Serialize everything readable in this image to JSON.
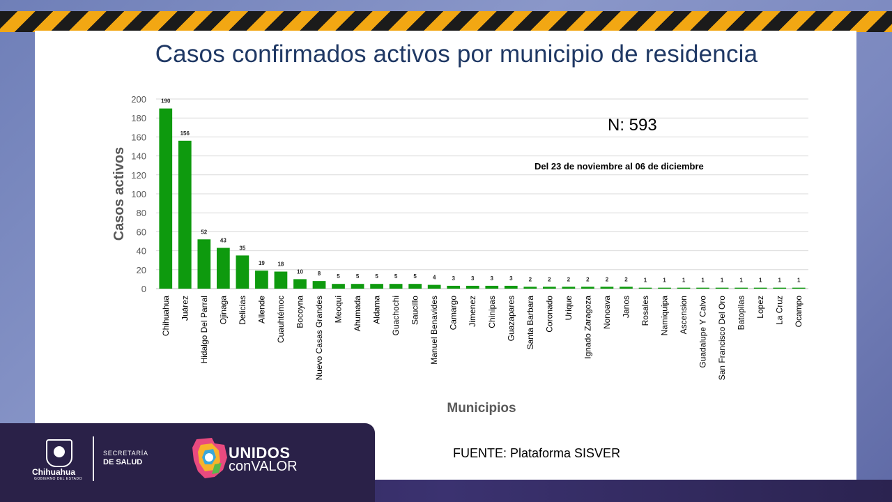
{
  "title": "Casos confirmados activos por municipio de residencia",
  "n_label": "N: 593",
  "period": "Del 23 de noviembre al 06 de diciembre",
  "source": "FUENTE: Plataforma SISVER",
  "colors": {
    "bar": "#0e9a0e",
    "title": "#1f3864",
    "axis_title": "#595959"
  },
  "footer": {
    "chihuahua": "Chihuahua",
    "gobierno": "GOBIERNO DEL ESTADO",
    "secretaria": "SECRETARÍA",
    "de_salud": "DE SALUD",
    "unidos": "UNIDOS",
    "con_valor": "conVALOR"
  },
  "chart_data": {
    "type": "bar",
    "title": "Casos confirmados activos por municipio de residencia",
    "xlabel": "Municipios",
    "ylabel": "Casos activos",
    "ylim": [
      0,
      200
    ],
    "yticks": [
      0,
      20,
      40,
      60,
      80,
      100,
      120,
      140,
      160,
      180,
      200
    ],
    "grid": true,
    "categories": [
      "Chihuahua",
      "Juárez",
      "Hidalgo Del Parral",
      "Ojinaga",
      "Delicias",
      "Allende",
      "Cuauhtémoc",
      "Bocoyna",
      "Nuevo Casas Grandes",
      "Meoqui",
      "Ahumada",
      "Aldama",
      "Guachochi",
      "Saucillo",
      "Manuel Benavides",
      "Camargo",
      "Jimenez",
      "Chinipas",
      "Guazapares",
      "Santa Barbara",
      "Coronado",
      "Urique",
      "Ignado Zaragoza",
      "Nonoava",
      "Janos",
      "Rosales",
      "Namiquipa",
      "Ascension",
      "Guadalupe Y Calvo",
      "San Francisco Del Oro",
      "Batopilas",
      "Lopez",
      "La Cruz",
      "Ocampo"
    ],
    "values": [
      190,
      156,
      52,
      43,
      35,
      19,
      18,
      10,
      8,
      5,
      5,
      5,
      5,
      5,
      4,
      3,
      3,
      3,
      3,
      2,
      2,
      2,
      2,
      2,
      2,
      1,
      1,
      1,
      1,
      1,
      1,
      1,
      1,
      1
    ]
  }
}
